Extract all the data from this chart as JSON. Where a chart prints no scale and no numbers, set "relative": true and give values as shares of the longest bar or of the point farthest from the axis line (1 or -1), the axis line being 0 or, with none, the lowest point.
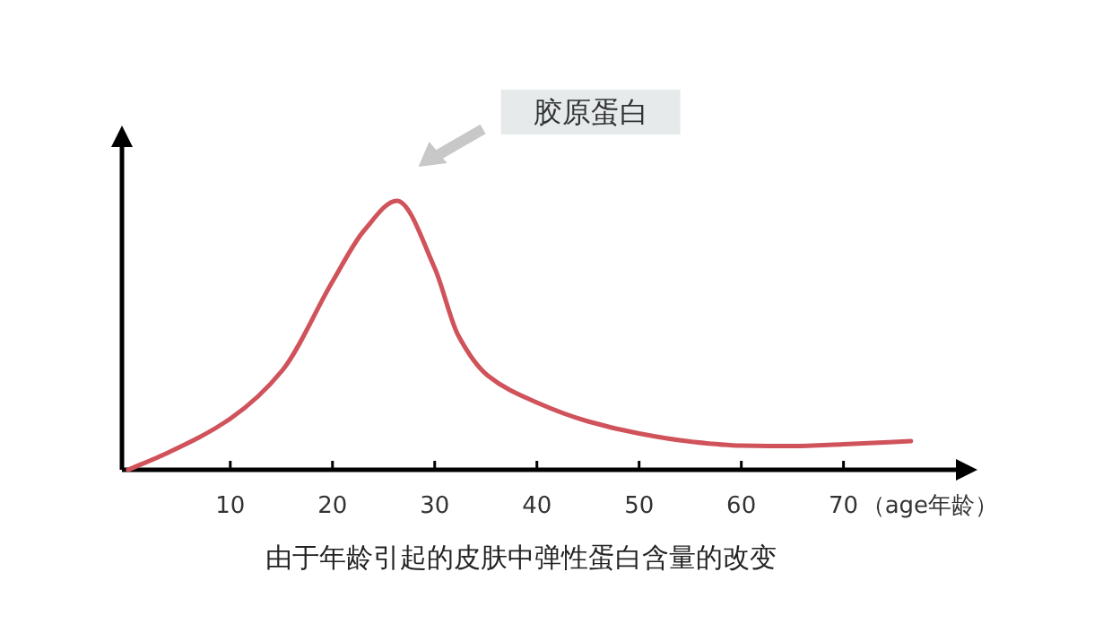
{
  "chart_data": {
    "type": "line",
    "relative": true,
    "xlabel": "（age年龄）",
    "xlim": [
      -0.6,
      81
    ],
    "xticks": [
      10,
      20,
      30,
      40,
      50,
      60,
      70
    ],
    "series": [
      {
        "color": "#d0525a",
        "x": [
          0,
          3.7,
          10,
          15.1,
          20,
          23.1,
          26.3,
          30,
          32.3,
          35.2,
          40,
          45,
          50,
          55,
          60,
          65,
          70,
          76.6
        ],
        "values": [
          0,
          0.06,
          0.19,
          0.37,
          0.7,
          0.89,
          1,
          0.75,
          0.5,
          0.35,
          0.25,
          0.18,
          0.135,
          0.105,
          0.09,
          0.088,
          0.095,
          0.107
        ]
      }
    ],
    "annotations": [
      "胶原蛋白",
      "由于年龄引起的皮肤中弹性蛋白含量的改变"
    ]
  }
}
